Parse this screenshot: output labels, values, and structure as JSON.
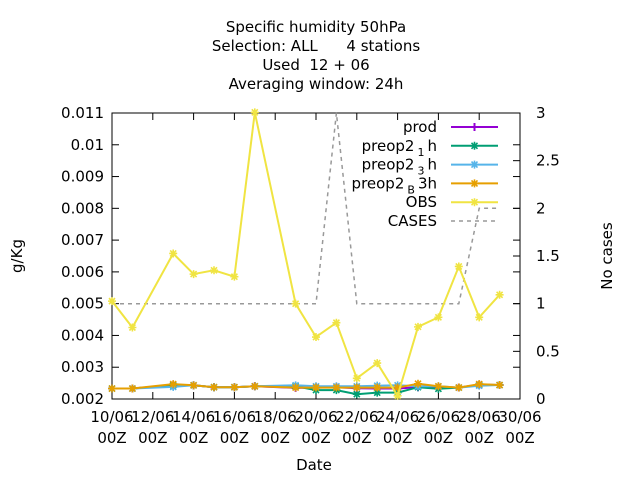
{
  "chart_data": {
    "type": "line",
    "title_lines": [
      "Specific humidity 50hPa",
      "Selection: ALL      4 stations",
      "Used  12 + 06",
      "Averaging window: 24h"
    ],
    "xlabel": "Date",
    "ylabel": "g/Kg",
    "y2label": "No cases",
    "x_ticks": [
      {
        "day": 10,
        "line1": "10/06",
        "line2": "00Z"
      },
      {
        "day": 12,
        "line1": "12/06",
        "line2": "00Z"
      },
      {
        "day": 14,
        "line1": "14/06",
        "line2": "00Z"
      },
      {
        "day": 16,
        "line1": "16/06",
        "line2": "00Z"
      },
      {
        "day": 18,
        "line1": "18/06",
        "line2": "00Z"
      },
      {
        "day": 20,
        "line1": "20/06",
        "line2": "00Z"
      },
      {
        "day": 22,
        "line1": "22/06",
        "line2": "00Z"
      },
      {
        "day": 24,
        "line1": "24/06",
        "line2": "00Z"
      },
      {
        "day": 26,
        "line1": "26/06",
        "line2": "00Z"
      },
      {
        "day": 28,
        "line1": "28/06",
        "line2": "00Z"
      },
      {
        "day": 30,
        "line1": "30/06",
        "line2": "00Z"
      }
    ],
    "xlim": [
      10,
      30
    ],
    "ylim": [
      0.002,
      0.011
    ],
    "y_ticks": [
      "0.002",
      "0.003",
      "0.004",
      "0.005",
      "0.006",
      "0.007",
      "0.008",
      "0.009",
      "0.01",
      "0.011"
    ],
    "y2lim": [
      0,
      3
    ],
    "y2_ticks": [
      "0",
      "0.5",
      "1",
      "1.5",
      "2",
      "2.5",
      "3"
    ],
    "grid": false,
    "legend_position": "top-right",
    "series": [
      {
        "name": "prod",
        "color": "#9400d3",
        "axis": "y1",
        "marker": "plus",
        "dashed": false,
        "x": [
          10,
          11,
          13,
          14,
          15,
          16,
          17,
          19,
          20,
          21,
          22,
          23,
          24,
          25,
          26,
          27,
          28,
          29
        ],
        "y": [
          0.00233,
          0.00233,
          0.00243,
          0.00243,
          0.00237,
          0.00237,
          0.0024,
          0.00235,
          0.00236,
          0.00237,
          0.00234,
          0.00233,
          0.00233,
          0.00237,
          0.00237,
          0.00236,
          0.00245,
          0.00244
        ]
      },
      {
        "name": "preop2 1 h",
        "name_main": "preop2",
        "name_sub": "1",
        "name_rest": "h",
        "color": "#009e73",
        "axis": "y1",
        "marker": "star",
        "dashed": false,
        "x": [
          10,
          11,
          13,
          14,
          15,
          16,
          17,
          19,
          20,
          21,
          22,
          23,
          24,
          25,
          26,
          27,
          28,
          29
        ],
        "y": [
          0.00233,
          0.00233,
          0.00243,
          0.00243,
          0.00237,
          0.00237,
          0.0024,
          0.0024,
          0.00228,
          0.00228,
          0.00215,
          0.0022,
          0.0022,
          0.00237,
          0.00232,
          0.00236,
          0.00245,
          0.00244
        ]
      },
      {
        "name": "preop2 3 h",
        "name_main": "preop2",
        "name_sub": "3",
        "name_rest": "h",
        "color": "#56b4e9",
        "axis": "y1",
        "marker": "star",
        "dashed": false,
        "x": [
          10,
          11,
          13,
          14,
          15,
          16,
          17,
          19,
          20,
          21,
          22,
          23,
          24,
          25,
          26,
          27,
          28,
          29
        ],
        "y": [
          0.00233,
          0.00233,
          0.00238,
          0.00243,
          0.00237,
          0.00237,
          0.0024,
          0.00243,
          0.0024,
          0.0024,
          0.0024,
          0.00242,
          0.00243,
          0.0024,
          0.0024,
          0.00236,
          0.00242,
          0.00244
        ]
      },
      {
        "name": "preop2 B 3h",
        "name_main": "preop2",
        "name_sub": "B",
        "name_rest": "3h",
        "color": "#e69f00",
        "axis": "y1",
        "marker": "star",
        "dashed": false,
        "x": [
          10,
          11,
          13,
          14,
          15,
          16,
          17,
          19,
          20,
          21,
          22,
          23,
          24,
          25,
          26,
          27,
          28,
          29
        ],
        "y": [
          0.00233,
          0.00233,
          0.00247,
          0.00243,
          0.00237,
          0.00237,
          0.0024,
          0.00236,
          0.00236,
          0.00236,
          0.00236,
          0.00236,
          0.00236,
          0.00248,
          0.0024,
          0.00236,
          0.00247,
          0.00244
        ]
      },
      {
        "name": "OBS",
        "color": "#f0e442",
        "axis": "y1",
        "marker": "star",
        "dashed": false,
        "x": [
          10,
          11,
          13,
          14,
          15,
          16,
          17,
          19,
          20,
          21,
          22,
          23,
          24,
          25,
          26,
          27,
          28,
          29
        ],
        "y": [
          0.00508,
          0.00425,
          0.00658,
          0.00593,
          0.00605,
          0.00585,
          0.01102,
          0.005,
          0.00395,
          0.0044,
          0.00265,
          0.00313,
          0.0021,
          0.00427,
          0.00457,
          0.00617,
          0.00457,
          0.00528
        ]
      },
      {
        "name": "CASES",
        "color": "#999999",
        "axis": "y2",
        "marker": "none",
        "dashed": true,
        "x": [
          10,
          11,
          13,
          14,
          15,
          16,
          17,
          19,
          20,
          21,
          22,
          23,
          24,
          25,
          26,
          27,
          28,
          29
        ],
        "y": [
          1,
          1,
          1,
          1,
          1,
          1,
          1,
          1,
          1,
          3,
          1,
          1,
          1,
          1,
          1,
          1,
          2,
          2
        ]
      }
    ]
  }
}
